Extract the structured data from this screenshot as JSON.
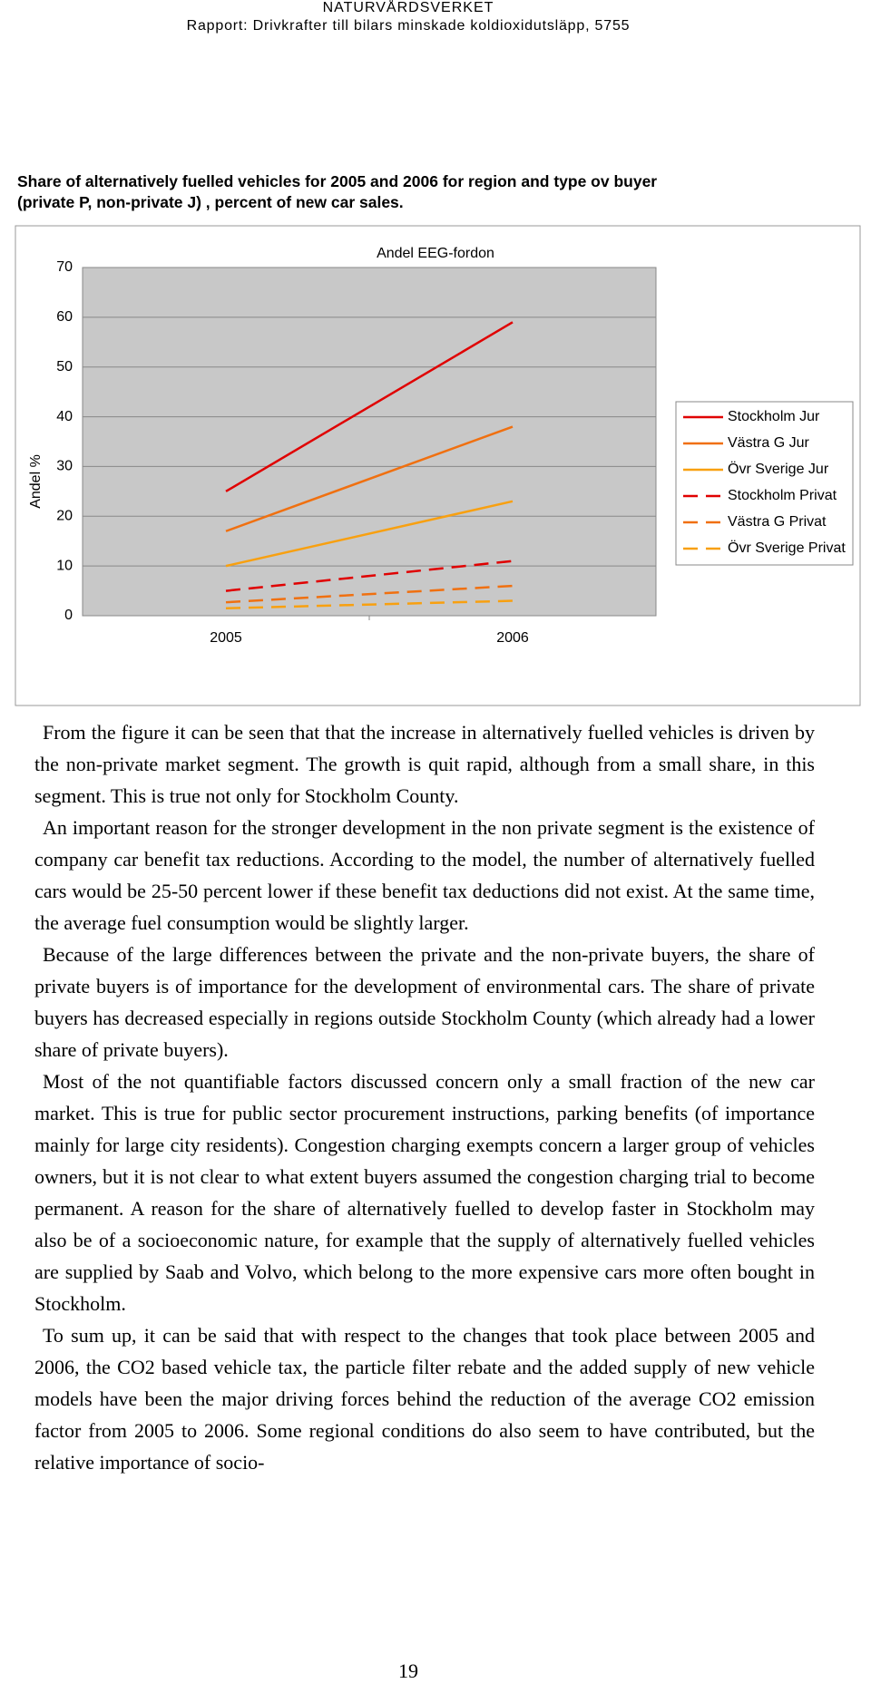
{
  "header": {
    "organization": "NATURVÅRDSVERKET",
    "report": "Rapport: Drivkrafter till bilars minskade koldioxidutsläpp, 5755"
  },
  "caption": [
    "Share of alternatively fuelled vehicles for 2005 and 2006 for region and type ov buyer",
    "(private P, non-private J) , percent of new car sales."
  ],
  "chart_data": {
    "type": "line",
    "title": "Andel EEG-fordon",
    "y_label": "Andel %",
    "categories": [
      "2005",
      "2006"
    ],
    "ylim": [
      0,
      70
    ],
    "yticks": [
      0,
      10,
      20,
      30,
      40,
      50,
      60,
      70
    ],
    "grid": true,
    "legend": "right",
    "series": [
      {
        "name": "Stockholm Jur",
        "color": "#e00000",
        "dashed": false,
        "values": [
          25,
          59
        ]
      },
      {
        "name": "Västra G Jur",
        "color": "#f07010",
        "dashed": false,
        "values": [
          17,
          38
        ]
      },
      {
        "name": "Övr Sverige Jur",
        "color": "#f8a010",
        "dashed": false,
        "values": [
          10,
          23
        ]
      },
      {
        "name": "Stockholm Privat",
        "color": "#e00000",
        "dashed": true,
        "values": [
          5,
          11
        ]
      },
      {
        "name": "Västra G Privat",
        "color": "#f07010",
        "dashed": true,
        "values": [
          2.7,
          6
        ]
      },
      {
        "name": "Övr Sverige Privat",
        "color": "#f8a010",
        "dashed": true,
        "values": [
          1.5,
          3
        ]
      }
    ]
  },
  "paragraphs": [
    "From the figure it can be seen that that the increase in alternatively fuelled vehicles is driven by the non-private market segment. The growth is quit rapid, although from a small share, in this segment. This is true not only for Stockholm County.",
    "An important reason for the stronger development in the non private segment is the existence of company car benefit tax reductions. According to the model, the number of alternatively fuelled cars would be 25-50 percent lower if these benefit tax deductions did not exist. At the same time, the average fuel consumption would be slightly larger.",
    "Because of the large differences between the private and the non-private buyers, the share of private buyers is of importance for the development of environmental cars. The share of private buyers has decreased especially in regions outside Stockholm County (which already had a lower share of private buyers).",
    "Most of the not quantifiable factors discussed concern only a small fraction of the new car market. This is true for public sector procurement instructions, parking benefits (of importance mainly for large city residents). Congestion charging exempts concern a larger group of vehicles owners, but it is not clear to what extent buyers assumed the congestion charging trial to become permanent. A reason for the share of alternatively fuelled to develop faster in Stockholm may also be of a socioeconomic nature, for example that the supply of alternatively fuelled vehicles are supplied by Saab and Volvo, which belong to the more expensive cars more often bought in Stockholm.",
    "To sum up, it can be said that with respect to the changes that took place between 2005 and 2006, the CO2 based vehicle tax, the particle filter rebate and the added supply of new vehicle models have been the major driving forces behind the reduction of the average CO2 emission factor from 2005 to 2006. Some regional conditions do also seem to have contributed, but the relative importance of socio-"
  ],
  "page_number": "19"
}
